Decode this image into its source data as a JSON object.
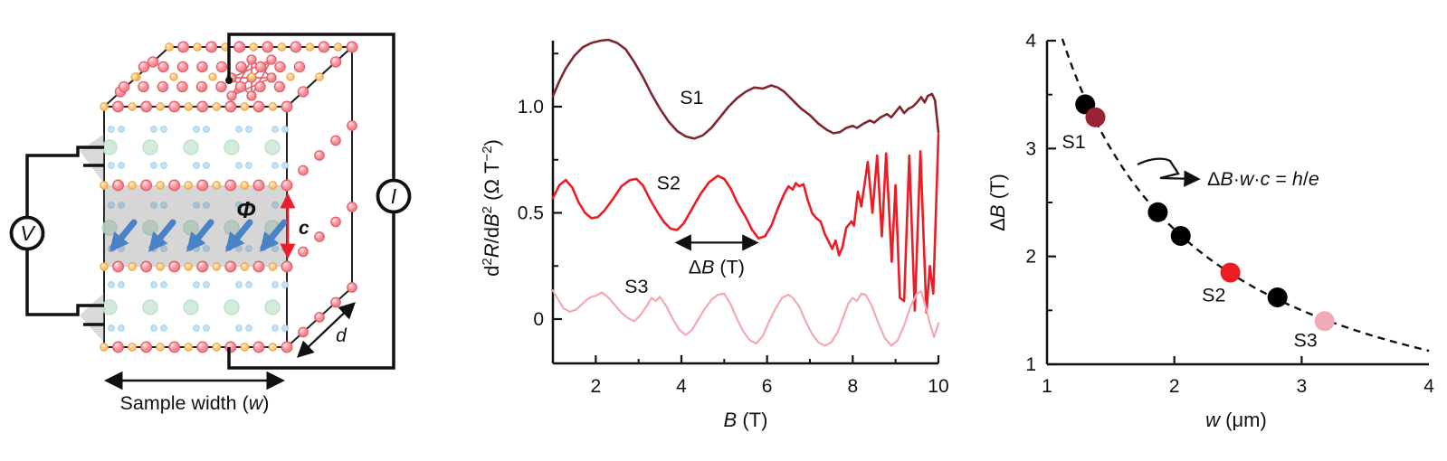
{
  "figure": {
    "panels": {
      "schematic": {
        "labels": {
          "voltmeter": "V",
          "current": "I",
          "flux": "Φ",
          "c_axis": "c",
          "depth": "d",
          "width_prefix": "Sample width (",
          "width_var": "w",
          "width_suffix": ")"
        },
        "colors": {
          "atom_red_fill": "#f6939b",
          "atom_red_stroke": "#e35f6a",
          "atom_orange_fill": "#facd83",
          "atom_orange_stroke": "#f0a84f",
          "green_fill": "#cfe9d8",
          "green_stroke": "#b7dfc6",
          "blue_dot_fill": "#c3e2f6",
          "blue_dot_stroke": "#a6d0ee",
          "slab_fill": "rgba(120,120,120,0.30)",
          "arrow_blue": "#4a82c8",
          "arrow_red": "#ed1c2c",
          "wire": "#111111",
          "edge": "#222222",
          "lattice_line": "#e4606b",
          "electrode_wedge": "rgba(150,150,150,0.35)"
        }
      }
    }
  },
  "chart_data": [
    {
      "type": "line",
      "title": "",
      "xlabel_parts": [
        {
          "t": "B",
          "i": true
        },
        {
          "t": " (T)"
        }
      ],
      "ylabel_parts": [
        {
          "t": "d"
        },
        {
          "t": "2",
          "sup": true
        },
        {
          "t": "R",
          "i": true
        },
        {
          "t": "/d"
        },
        {
          "t": "B",
          "i": true
        },
        {
          "t": "2",
          "sup": true
        },
        {
          "t": " (Ω T"
        },
        {
          "t": "−2",
          "sup": true
        },
        {
          "t": ")"
        }
      ],
      "xlim": [
        1,
        10
      ],
      "ylim": [
        -0.21,
        1.31
      ],
      "x_major_ticks": [
        2,
        4,
        6,
        8,
        10
      ],
      "x_minor_ticks": [
        3,
        5,
        7,
        9
      ],
      "y_major_ticks": [
        0,
        0.5,
        1.0
      ],
      "y_tick_labels": [
        "0",
        "0.5",
        "1.0"
      ],
      "y_minor_ticks": [
        0.25,
        0.75,
        1.25
      ],
      "grid": false,
      "annotation": {
        "label_parts": [
          {
            "t": "Δ"
          },
          {
            "t": "B",
            "i": true
          },
          {
            "t": " (T)"
          }
        ],
        "arrow_x": [
          3.9,
          5.75
        ],
        "arrow_y": 0.36,
        "label_x": 4.82,
        "label_y": 0.245
      },
      "series": [
        {
          "name": "S1",
          "color": "#7f2631",
          "width": 2.6,
          "label_x": 4.24,
          "label_y": 1.042,
          "x": [
            1,
            1.15,
            1.3,
            1.5,
            1.7,
            1.9,
            2.1,
            2.3,
            2.5,
            2.7,
            2.9,
            3.1,
            3.3,
            3.5,
            3.7,
            3.9,
            4.1,
            4.3,
            4.5,
            4.7,
            4.9,
            5.1,
            5.3,
            5.5,
            5.7,
            5.9,
            6.1,
            6.25,
            6.4,
            6.6,
            6.8,
            7.0,
            7.2,
            7.4,
            7.55,
            7.7,
            7.85,
            8.0,
            8.1,
            8.25,
            8.4,
            8.5,
            8.65,
            8.8,
            8.9,
            9.0,
            9.1,
            9.2,
            9.3,
            9.4,
            9.5,
            9.6,
            9.68,
            9.75,
            9.85,
            9.92,
            10
          ],
          "y": [
            1.05,
            1.12,
            1.18,
            1.24,
            1.28,
            1.3,
            1.31,
            1.315,
            1.3,
            1.27,
            1.21,
            1.14,
            1.06,
            0.99,
            0.93,
            0.885,
            0.86,
            0.85,
            0.865,
            0.9,
            0.95,
            1.0,
            1.04,
            1.07,
            1.09,
            1.085,
            1.1,
            1.09,
            1.07,
            1.03,
            0.99,
            0.96,
            0.92,
            0.89,
            0.875,
            0.88,
            0.9,
            0.91,
            0.9,
            0.92,
            0.935,
            0.925,
            0.95,
            0.965,
            0.95,
            0.975,
            1.0,
            0.97,
            0.99,
            1.0,
            1.02,
            1.045,
            1.02,
            1.05,
            1.06,
            1.03,
            0.88
          ]
        },
        {
          "name": "S2",
          "color": "#ed1c24",
          "width": 2.6,
          "label_x": 3.7,
          "label_y": 0.64,
          "x": [
            1,
            1.15,
            1.3,
            1.45,
            1.6,
            1.75,
            1.9,
            2.05,
            2.2,
            2.4,
            2.6,
            2.8,
            2.95,
            3.1,
            3.25,
            3.45,
            3.6,
            3.75,
            3.9,
            4.05,
            4.25,
            4.45,
            4.65,
            4.85,
            5.0,
            5.15,
            5.3,
            5.5,
            5.65,
            5.8,
            5.95,
            6.1,
            6.25,
            6.4,
            6.5,
            6.6,
            6.67,
            6.75,
            6.85,
            6.95,
            7.05,
            7.15,
            7.25,
            7.35,
            7.45,
            7.52,
            7.6,
            7.68,
            7.76,
            7.85,
            7.97,
            8.03,
            8.12,
            8.2,
            8.35,
            8.46,
            8.57,
            8.68,
            8.78,
            8.91,
            9.0,
            9.1,
            9.2,
            9.32,
            9.45,
            9.58,
            9.72,
            9.8,
            9.88,
            10
          ],
          "y": [
            0.57,
            0.63,
            0.655,
            0.62,
            0.55,
            0.5,
            0.475,
            0.48,
            0.51,
            0.565,
            0.625,
            0.655,
            0.66,
            0.63,
            0.57,
            0.5,
            0.455,
            0.425,
            0.42,
            0.45,
            0.52,
            0.59,
            0.645,
            0.675,
            0.66,
            0.615,
            0.55,
            0.48,
            0.42,
            0.38,
            0.39,
            0.44,
            0.52,
            0.59,
            0.625,
            0.61,
            0.64,
            0.625,
            0.635,
            0.56,
            0.5,
            0.475,
            0.46,
            0.4,
            0.36,
            0.33,
            0.37,
            0.3,
            0.34,
            0.43,
            0.46,
            0.44,
            0.6,
            0.53,
            0.74,
            0.5,
            0.77,
            0.39,
            0.78,
            0.27,
            0.63,
            0.1,
            0.085,
            0.77,
            0.04,
            0.79,
            0.03,
            0.25,
            0.12,
            0.87
          ]
        },
        {
          "name": "S3",
          "color": "#f5a8b2",
          "width": 2.2,
          "label_x": 2.95,
          "label_y": 0.153,
          "x": [
            1,
            1.1,
            1.25,
            1.4,
            1.55,
            1.7,
            1.85,
            2.0,
            2.15,
            2.3,
            2.45,
            2.6,
            2.75,
            2.9,
            3.05,
            3.2,
            3.3,
            3.4,
            3.5,
            3.65,
            3.8,
            3.95,
            4.1,
            4.25,
            4.4,
            4.55,
            4.7,
            4.85,
            5.0,
            5.15,
            5.3,
            5.45,
            5.6,
            5.75,
            5.9,
            6.05,
            6.2,
            6.35,
            6.5,
            6.6,
            6.75,
            6.9,
            7.05,
            7.2,
            7.35,
            7.5,
            7.65,
            7.8,
            7.9,
            8.0,
            8.1,
            8.2,
            8.3,
            8.45,
            8.6,
            8.75,
            8.9,
            9.05,
            9.2,
            9.35,
            9.5,
            9.6,
            9.7,
            9.8,
            9.9,
            10
          ],
          "y": [
            0.135,
            0.1,
            0.05,
            0.035,
            0.045,
            0.075,
            0.1,
            0.11,
            0.125,
            0.1,
            0.065,
            0.03,
            0.005,
            -0.01,
            0.02,
            0.065,
            0.1,
            0.085,
            0.105,
            0.06,
            0.0,
            -0.05,
            -0.075,
            -0.05,
            0.0,
            0.05,
            0.09,
            0.115,
            0.12,
            0.07,
            0.0,
            -0.06,
            -0.1,
            -0.115,
            -0.08,
            -0.01,
            0.05,
            0.1,
            0.115,
            0.1,
            0.06,
            -0.01,
            -0.07,
            -0.11,
            -0.125,
            -0.11,
            -0.06,
            0.02,
            0.075,
            0.1,
            0.085,
            0.12,
            0.115,
            0.06,
            -0.02,
            -0.09,
            -0.125,
            -0.1,
            -0.03,
            0.06,
            0.12,
            0.13,
            0.06,
            -0.02,
            -0.085,
            -0.02
          ]
        }
      ]
    },
    {
      "type": "scatter",
      "title": "",
      "xlabel_parts": [
        {
          "t": "w",
          "i": true
        },
        {
          "t": " (μm)"
        }
      ],
      "ylabel_parts": [
        {
          "t": "Δ"
        },
        {
          "t": "B",
          "i": true
        },
        {
          "t": " (T)"
        }
      ],
      "xlim": [
        1,
        4
      ],
      "ylim": [
        1,
        4
      ],
      "x_major_ticks": [
        1,
        2,
        3,
        4
      ],
      "x_inner_ticks": [
        2,
        3
      ],
      "y_major_ticks": [
        1,
        2,
        3,
        4
      ],
      "y_minor_ticks": [
        1.5,
        2.5,
        3.5
      ],
      "grid": false,
      "curve": {
        "formula": "dB = k / w",
        "k": 4.5,
        "w_range": [
          1.12,
          4.0
        ],
        "style": "dashed",
        "color": "#111111"
      },
      "equation_parts": [
        {
          "t": "Δ"
        },
        {
          "t": "B",
          "i": true
        },
        {
          "t": "·"
        },
        {
          "t": "w",
          "i": true
        },
        {
          "t": "·"
        },
        {
          "t": "c",
          "i": true
        },
        {
          "t": " = "
        },
        {
          "t": "h",
          "i": true
        },
        {
          "t": "/"
        },
        {
          "t": "e",
          "i": true
        }
      ],
      "points": [
        {
          "w": 1.3,
          "dB": 3.41,
          "color": "#000000"
        },
        {
          "w": 1.38,
          "dB": 3.29,
          "color": "#992335",
          "label": "S1",
          "label_pos": [
            1.21,
            3.06
          ]
        },
        {
          "w": 1.87,
          "dB": 2.41,
          "color": "#000000"
        },
        {
          "w": 2.05,
          "dB": 2.19,
          "color": "#000000"
        },
        {
          "w": 2.44,
          "dB": 1.85,
          "color": "#ed1c24",
          "label": "S2",
          "label_pos": [
            2.31,
            1.64
          ]
        },
        {
          "w": 2.81,
          "dB": 1.62,
          "color": "#000000"
        },
        {
          "w": 3.18,
          "dB": 1.4,
          "color": "#f2aab6",
          "label": "S3",
          "label_pos": [
            3.03,
            1.22
          ]
        }
      ]
    }
  ]
}
